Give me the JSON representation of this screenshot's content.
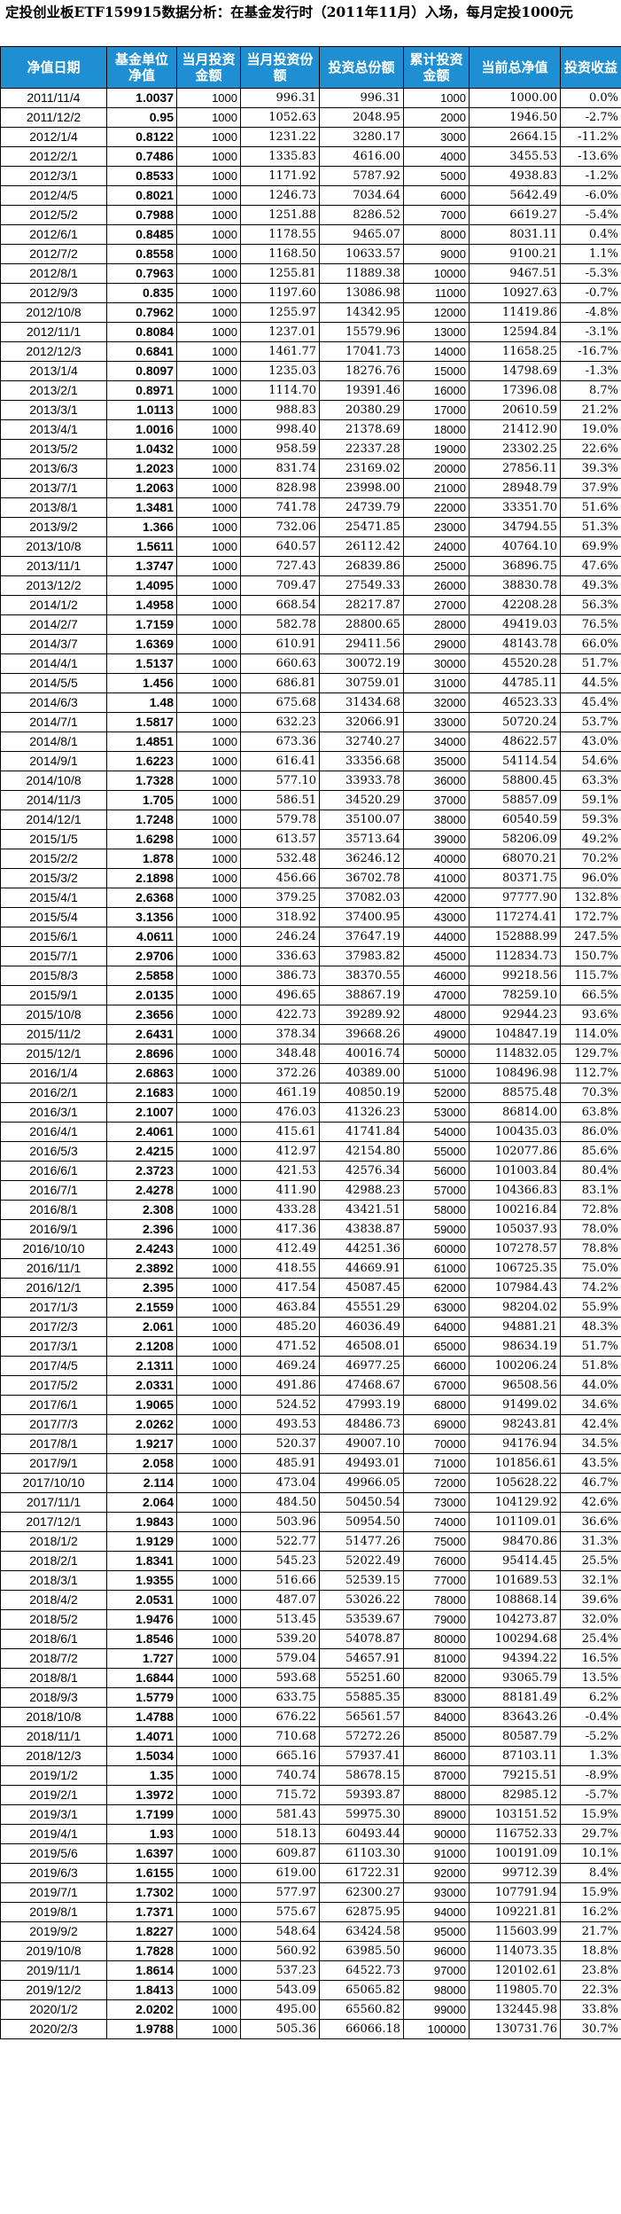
{
  "title": "定投创业板ETF159915数据分析：在基金发行时（2011年11月）入场，每月定投1000元",
  "headers": [
    "净值日期",
    "基金单位净值",
    "当月投资金额",
    "当月投资份额",
    "投资总份额",
    "累计投资金额",
    "当前总净值",
    "投资收益"
  ],
  "rows": [
    [
      "2011/11/4",
      "1.0037",
      "1000",
      "996.31",
      "996.31",
      "1000",
      "1000.00",
      "0.0%"
    ],
    [
      "2011/12/2",
      "0.95",
      "1000",
      "1052.63",
      "2048.95",
      "2000",
      "1946.50",
      "-2.7%"
    ],
    [
      "2012/1/4",
      "0.8122",
      "1000",
      "1231.22",
      "3280.17",
      "3000",
      "2664.15",
      "-11.2%"
    ],
    [
      "2012/2/1",
      "0.7486",
      "1000",
      "1335.83",
      "4616.00",
      "4000",
      "3455.53",
      "-13.6%"
    ],
    [
      "2012/3/1",
      "0.8533",
      "1000",
      "1171.92",
      "5787.92",
      "5000",
      "4938.83",
      "-1.2%"
    ],
    [
      "2012/4/5",
      "0.8021",
      "1000",
      "1246.73",
      "7034.64",
      "6000",
      "5642.49",
      "-6.0%"
    ],
    [
      "2012/5/2",
      "0.7988",
      "1000",
      "1251.88",
      "8286.52",
      "7000",
      "6619.27",
      "-5.4%"
    ],
    [
      "2012/6/1",
      "0.8485",
      "1000",
      "1178.55",
      "9465.07",
      "8000",
      "8031.11",
      "0.4%"
    ],
    [
      "2012/7/2",
      "0.8558",
      "1000",
      "1168.50",
      "10633.57",
      "9000",
      "9100.21",
      "1.1%"
    ],
    [
      "2012/8/1",
      "0.7963",
      "1000",
      "1255.81",
      "11889.38",
      "10000",
      "9467.51",
      "-5.3%"
    ],
    [
      "2012/9/3",
      "0.835",
      "1000",
      "1197.60",
      "13086.98",
      "11000",
      "10927.63",
      "-0.7%"
    ],
    [
      "2012/10/8",
      "0.7962",
      "1000",
      "1255.97",
      "14342.95",
      "12000",
      "11419.86",
      "-4.8%"
    ],
    [
      "2012/11/1",
      "0.8084",
      "1000",
      "1237.01",
      "15579.96",
      "13000",
      "12594.84",
      "-3.1%"
    ],
    [
      "2012/12/3",
      "0.6841",
      "1000",
      "1461.77",
      "17041.73",
      "14000",
      "11658.25",
      "-16.7%"
    ],
    [
      "2013/1/4",
      "0.8097",
      "1000",
      "1235.03",
      "18276.76",
      "15000",
      "14798.69",
      "-1.3%"
    ],
    [
      "2013/2/1",
      "0.8971",
      "1000",
      "1114.70",
      "19391.46",
      "16000",
      "17396.08",
      "8.7%"
    ],
    [
      "2013/3/1",
      "1.0113",
      "1000",
      "988.83",
      "20380.29",
      "17000",
      "20610.59",
      "21.2%"
    ],
    [
      "2013/4/1",
      "1.0016",
      "1000",
      "998.40",
      "21378.69",
      "18000",
      "21412.90",
      "19.0%"
    ],
    [
      "2013/5/2",
      "1.0432",
      "1000",
      "958.59",
      "22337.28",
      "19000",
      "23302.25",
      "22.6%"
    ],
    [
      "2013/6/3",
      "1.2023",
      "1000",
      "831.74",
      "23169.02",
      "20000",
      "27856.11",
      "39.3%"
    ],
    [
      "2013/7/1",
      "1.2063",
      "1000",
      "828.98",
      "23998.00",
      "21000",
      "28948.79",
      "37.9%"
    ],
    [
      "2013/8/1",
      "1.3481",
      "1000",
      "741.78",
      "24739.79",
      "22000",
      "33351.70",
      "51.6%"
    ],
    [
      "2013/9/2",
      "1.366",
      "1000",
      "732.06",
      "25471.85",
      "23000",
      "34794.55",
      "51.3%"
    ],
    [
      "2013/10/8",
      "1.5611",
      "1000",
      "640.57",
      "26112.42",
      "24000",
      "40764.10",
      "69.9%"
    ],
    [
      "2013/11/1",
      "1.3747",
      "1000",
      "727.43",
      "26839.86",
      "25000",
      "36896.75",
      "47.6%"
    ],
    [
      "2013/12/2",
      "1.4095",
      "1000",
      "709.47",
      "27549.33",
      "26000",
      "38830.78",
      "49.3%"
    ],
    [
      "2014/1/2",
      "1.4958",
      "1000",
      "668.54",
      "28217.87",
      "27000",
      "42208.28",
      "56.3%"
    ],
    [
      "2014/2/7",
      "1.7159",
      "1000",
      "582.78",
      "28800.65",
      "28000",
      "49419.03",
      "76.5%"
    ],
    [
      "2014/3/7",
      "1.6369",
      "1000",
      "610.91",
      "29411.56",
      "29000",
      "48143.78",
      "66.0%"
    ],
    [
      "2014/4/1",
      "1.5137",
      "1000",
      "660.63",
      "30072.19",
      "30000",
      "45520.28",
      "51.7%"
    ],
    [
      "2014/5/5",
      "1.456",
      "1000",
      "686.81",
      "30759.01",
      "31000",
      "44785.11",
      "44.5%"
    ],
    [
      "2014/6/3",
      "1.48",
      "1000",
      "675.68",
      "31434.68",
      "32000",
      "46523.33",
      "45.4%"
    ],
    [
      "2014/7/1",
      "1.5817",
      "1000",
      "632.23",
      "32066.91",
      "33000",
      "50720.24",
      "53.7%"
    ],
    [
      "2014/8/1",
      "1.4851",
      "1000",
      "673.36",
      "32740.27",
      "34000",
      "48622.57",
      "43.0%"
    ],
    [
      "2014/9/1",
      "1.6223",
      "1000",
      "616.41",
      "33356.68",
      "35000",
      "54114.54",
      "54.6%"
    ],
    [
      "2014/10/8",
      "1.7328",
      "1000",
      "577.10",
      "33933.78",
      "36000",
      "58800.45",
      "63.3%"
    ],
    [
      "2014/11/3",
      "1.705",
      "1000",
      "586.51",
      "34520.29",
      "37000",
      "58857.09",
      "59.1%"
    ],
    [
      "2014/12/1",
      "1.7248",
      "1000",
      "579.78",
      "35100.07",
      "38000",
      "60540.59",
      "59.3%"
    ],
    [
      "2015/1/5",
      "1.6298",
      "1000",
      "613.57",
      "35713.64",
      "39000",
      "58206.09",
      "49.2%"
    ],
    [
      "2015/2/2",
      "1.878",
      "1000",
      "532.48",
      "36246.12",
      "40000",
      "68070.21",
      "70.2%"
    ],
    [
      "2015/3/2",
      "2.1898",
      "1000",
      "456.66",
      "36702.78",
      "41000",
      "80371.75",
      "96.0%"
    ],
    [
      "2015/4/1",
      "2.6368",
      "1000",
      "379.25",
      "37082.03",
      "42000",
      "97777.90",
      "132.8%"
    ],
    [
      "2015/5/4",
      "3.1356",
      "1000",
      "318.92",
      "37400.95",
      "43000",
      "117274.41",
      "172.7%"
    ],
    [
      "2015/6/1",
      "4.0611",
      "1000",
      "246.24",
      "37647.19",
      "44000",
      "152888.99",
      "247.5%"
    ],
    [
      "2015/7/1",
      "2.9706",
      "1000",
      "336.63",
      "37983.82",
      "45000",
      "112834.73",
      "150.7%"
    ],
    [
      "2015/8/3",
      "2.5858",
      "1000",
      "386.73",
      "38370.55",
      "46000",
      "99218.56",
      "115.7%"
    ],
    [
      "2015/9/1",
      "2.0135",
      "1000",
      "496.65",
      "38867.19",
      "47000",
      "78259.10",
      "66.5%"
    ],
    [
      "2015/10/8",
      "2.3656",
      "1000",
      "422.73",
      "39289.92",
      "48000",
      "92944.23",
      "93.6%"
    ],
    [
      "2015/11/2",
      "2.6431",
      "1000",
      "378.34",
      "39668.26",
      "49000",
      "104847.19",
      "114.0%"
    ],
    [
      "2015/12/1",
      "2.8696",
      "1000",
      "348.48",
      "40016.74",
      "50000",
      "114832.05",
      "129.7%"
    ],
    [
      "2016/1/4",
      "2.6863",
      "1000",
      "372.26",
      "40389.00",
      "51000",
      "108496.98",
      "112.7%"
    ],
    [
      "2016/2/1",
      "2.1683",
      "1000",
      "461.19",
      "40850.19",
      "52000",
      "88575.48",
      "70.3%"
    ],
    [
      "2016/3/1",
      "2.1007",
      "1000",
      "476.03",
      "41326.23",
      "53000",
      "86814.00",
      "63.8%"
    ],
    [
      "2016/4/1",
      "2.4061",
      "1000",
      "415.61",
      "41741.84",
      "54000",
      "100435.03",
      "86.0%"
    ],
    [
      "2016/5/3",
      "2.4215",
      "1000",
      "412.97",
      "42154.80",
      "55000",
      "102077.86",
      "85.6%"
    ],
    [
      "2016/6/1",
      "2.3723",
      "1000",
      "421.53",
      "42576.34",
      "56000",
      "101003.84",
      "80.4%"
    ],
    [
      "2016/7/1",
      "2.4278",
      "1000",
      "411.90",
      "42988.23",
      "57000",
      "104366.83",
      "83.1%"
    ],
    [
      "2016/8/1",
      "2.308",
      "1000",
      "433.28",
      "43421.51",
      "58000",
      "100216.84",
      "72.8%"
    ],
    [
      "2016/9/1",
      "2.396",
      "1000",
      "417.36",
      "43838.87",
      "59000",
      "105037.93",
      "78.0%"
    ],
    [
      "2016/10/10",
      "2.4243",
      "1000",
      "412.49",
      "44251.36",
      "60000",
      "107278.57",
      "78.8%"
    ],
    [
      "2016/11/1",
      "2.3892",
      "1000",
      "418.55",
      "44669.91",
      "61000",
      "106725.35",
      "75.0%"
    ],
    [
      "2016/12/1",
      "2.395",
      "1000",
      "417.54",
      "45087.45",
      "62000",
      "107984.43",
      "74.2%"
    ],
    [
      "2017/1/3",
      "2.1559",
      "1000",
      "463.84",
      "45551.29",
      "63000",
      "98204.02",
      "55.9%"
    ],
    [
      "2017/2/3",
      "2.061",
      "1000",
      "485.20",
      "46036.49",
      "64000",
      "94881.21",
      "48.3%"
    ],
    [
      "2017/3/1",
      "2.1208",
      "1000",
      "471.52",
      "46508.01",
      "65000",
      "98634.19",
      "51.7%"
    ],
    [
      "2017/4/5",
      "2.1311",
      "1000",
      "469.24",
      "46977.25",
      "66000",
      "100206.24",
      "51.8%"
    ],
    [
      "2017/5/2",
      "2.0331",
      "1000",
      "491.86",
      "47468.67",
      "67000",
      "96508.56",
      "44.0%"
    ],
    [
      "2017/6/1",
      "1.9065",
      "1000",
      "524.52",
      "47993.19",
      "68000",
      "91499.02",
      "34.6%"
    ],
    [
      "2017/7/3",
      "2.0262",
      "1000",
      "493.53",
      "48486.73",
      "69000",
      "98243.81",
      "42.4%"
    ],
    [
      "2017/8/1",
      "1.9217",
      "1000",
      "520.37",
      "49007.10",
      "70000",
      "94176.94",
      "34.5%"
    ],
    [
      "2017/9/1",
      "2.058",
      "1000",
      "485.91",
      "49493.01",
      "71000",
      "101856.61",
      "43.5%"
    ],
    [
      "2017/10/10",
      "2.114",
      "1000",
      "473.04",
      "49966.05",
      "72000",
      "105628.22",
      "46.7%"
    ],
    [
      "2017/11/1",
      "2.064",
      "1000",
      "484.50",
      "50450.54",
      "73000",
      "104129.92",
      "42.6%"
    ],
    [
      "2017/12/1",
      "1.9843",
      "1000",
      "503.96",
      "50954.50",
      "74000",
      "101109.01",
      "36.6%"
    ],
    [
      "2018/1/2",
      "1.9129",
      "1000",
      "522.77",
      "51477.26",
      "75000",
      "98470.86",
      "31.3%"
    ],
    [
      "2018/2/1",
      "1.8341",
      "1000",
      "545.23",
      "52022.49",
      "76000",
      "95414.45",
      "25.5%"
    ],
    [
      "2018/3/1",
      "1.9355",
      "1000",
      "516.66",
      "52539.15",
      "77000",
      "101689.53",
      "32.1%"
    ],
    [
      "2018/4/2",
      "2.0531",
      "1000",
      "487.07",
      "53026.22",
      "78000",
      "108868.14",
      "39.6%"
    ],
    [
      "2018/5/2",
      "1.9476",
      "1000",
      "513.45",
      "53539.67",
      "79000",
      "104273.87",
      "32.0%"
    ],
    [
      "2018/6/1",
      "1.8546",
      "1000",
      "539.20",
      "54078.87",
      "80000",
      "100294.68",
      "25.4%"
    ],
    [
      "2018/7/2",
      "1.727",
      "1000",
      "579.04",
      "54657.91",
      "81000",
      "94394.22",
      "16.5%"
    ],
    [
      "2018/8/1",
      "1.6844",
      "1000",
      "593.68",
      "55251.60",
      "82000",
      "93065.79",
      "13.5%"
    ],
    [
      "2018/9/3",
      "1.5779",
      "1000",
      "633.75",
      "55885.35",
      "83000",
      "88181.49",
      "6.2%"
    ],
    [
      "2018/10/8",
      "1.4788",
      "1000",
      "676.22",
      "56561.57",
      "84000",
      "83643.26",
      "-0.4%"
    ],
    [
      "2018/11/1",
      "1.4071",
      "1000",
      "710.68",
      "57272.26",
      "85000",
      "80587.79",
      "-5.2%"
    ],
    [
      "2018/12/3",
      "1.5034",
      "1000",
      "665.16",
      "57937.41",
      "86000",
      "87103.11",
      "1.3%"
    ],
    [
      "2019/1/2",
      "1.35",
      "1000",
      "740.74",
      "58678.15",
      "87000",
      "79215.51",
      "-8.9%"
    ],
    [
      "2019/2/1",
      "1.3972",
      "1000",
      "715.72",
      "59393.87",
      "88000",
      "82985.12",
      "-5.7%"
    ],
    [
      "2019/3/1",
      "1.7199",
      "1000",
      "581.43",
      "59975.30",
      "89000",
      "103151.52",
      "15.9%"
    ],
    [
      "2019/4/1",
      "1.93",
      "1000",
      "518.13",
      "60493.44",
      "90000",
      "116752.33",
      "29.7%"
    ],
    [
      "2019/5/6",
      "1.6397",
      "1000",
      "609.87",
      "61103.30",
      "91000",
      "100191.09",
      "10.1%"
    ],
    [
      "2019/6/3",
      "1.6155",
      "1000",
      "619.00",
      "61722.31",
      "92000",
      "99712.39",
      "8.4%"
    ],
    [
      "2019/7/1",
      "1.7302",
      "1000",
      "577.97",
      "62300.27",
      "93000",
      "107791.94",
      "15.9%"
    ],
    [
      "2019/8/1",
      "1.7371",
      "1000",
      "575.67",
      "62875.95",
      "94000",
      "109221.81",
      "16.2%"
    ],
    [
      "2019/9/2",
      "1.8227",
      "1000",
      "548.64",
      "63424.58",
      "95000",
      "115603.99",
      "21.7%"
    ],
    [
      "2019/10/8",
      "1.7828",
      "1000",
      "560.92",
      "63985.50",
      "96000",
      "114073.35",
      "18.8%"
    ],
    [
      "2019/11/1",
      "1.8614",
      "1000",
      "537.23",
      "64522.73",
      "97000",
      "120102.61",
      "23.8%"
    ],
    [
      "2019/12/2",
      "1.8413",
      "1000",
      "543.09",
      "65065.82",
      "98000",
      "119805.70",
      "22.3%"
    ],
    [
      "2020/1/2",
      "2.0202",
      "1000",
      "495.00",
      "65560.82",
      "99000",
      "132445.98",
      "33.8%"
    ],
    [
      "2020/2/3",
      "1.9788",
      "1000",
      "505.36",
      "66066.18",
      "100000",
      "130731.76",
      "30.7%"
    ]
  ]
}
